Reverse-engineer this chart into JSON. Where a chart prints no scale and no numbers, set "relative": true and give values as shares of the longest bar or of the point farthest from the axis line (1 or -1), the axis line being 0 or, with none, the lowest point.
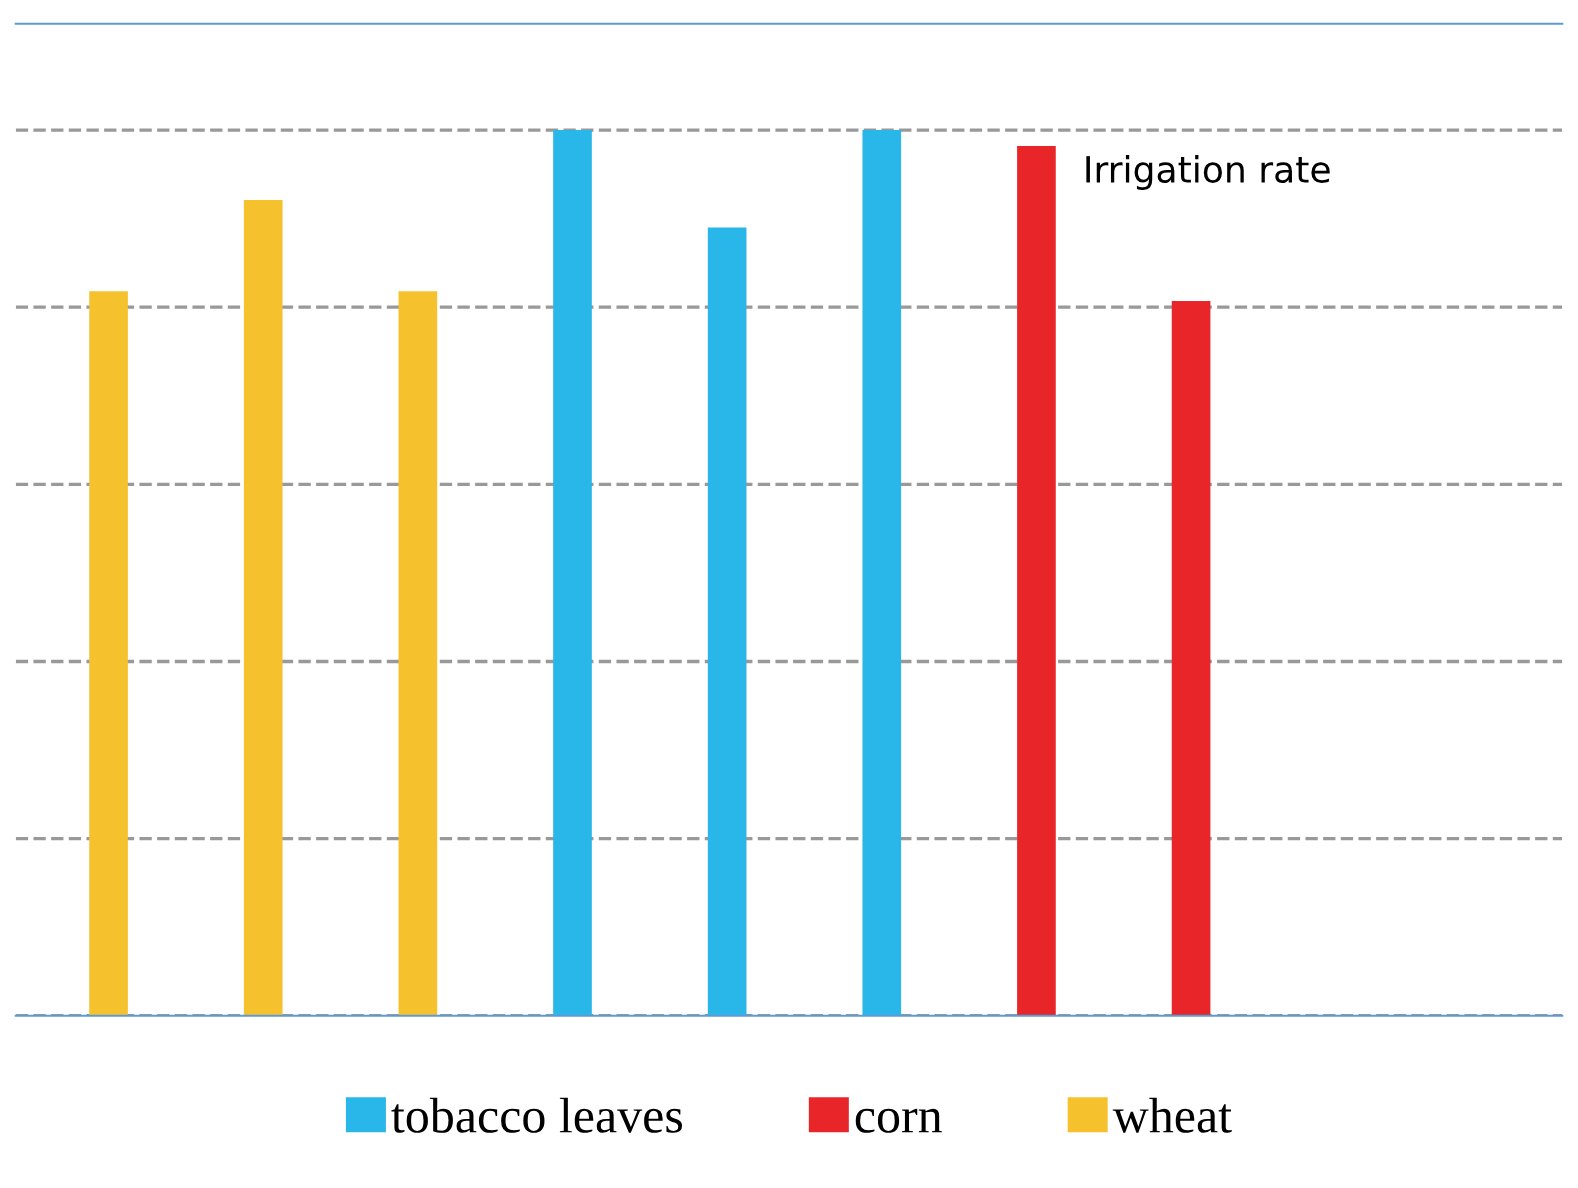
{
  "chart_data": {
    "type": "bar",
    "relative": true,
    "categories": [
      null,
      null,
      null,
      null,
      null,
      null,
      null,
      null
    ],
    "series": [
      {
        "name": "tobacco leaves",
        "color": "#29b6e8",
        "values": [
          null,
          null,
          null,
          1,
          0.89,
          1,
          null,
          null
        ]
      },
      {
        "name": "corn",
        "color": "#e8262a",
        "values": [
          null,
          null,
          null,
          null,
          null,
          null,
          0.982,
          0.807
        ]
      },
      {
        "name": "wheat",
        "color": "#f5c22e",
        "values": [
          0.818,
          0.921,
          0.818,
          null,
          null,
          null,
          null,
          null
        ]
      }
    ],
    "annotations": [
      "Irrigation rate"
    ],
    "stacked": true,
    "grid": "y",
    "legend": "bottom"
  }
}
